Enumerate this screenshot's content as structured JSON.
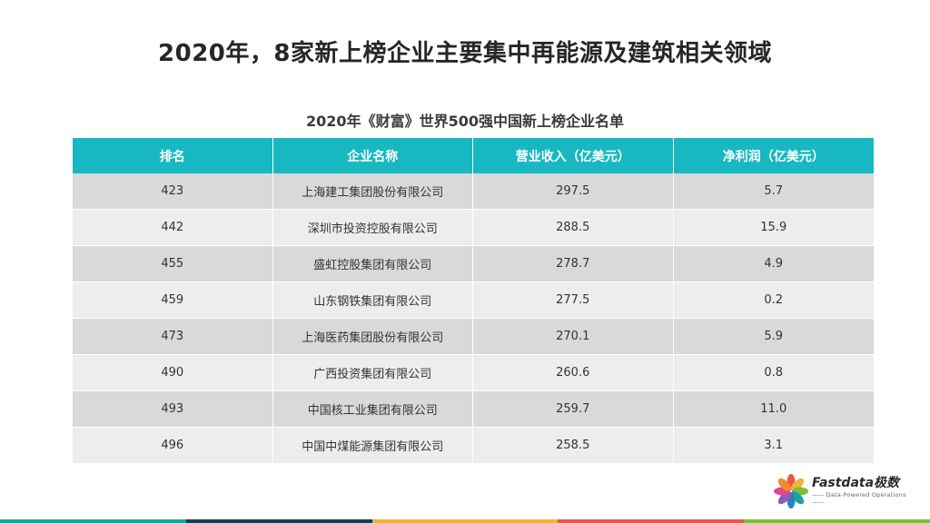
{
  "title": "2020年，8家新上榜企业主要集中再能源及建筑相关领域",
  "table_title": "2020年《财富》世界500强中国新上榜企业名单",
  "columns": [
    "排名",
    "企业名称",
    "营业收入（亿美元）",
    "净利润（亿美元）"
  ],
  "rows": [
    [
      "423",
      "上海建工集团股份有限公司",
      "297.5",
      "5.7"
    ],
    [
      "442",
      "深圳市投资控股有限公司",
      "288.5",
      "15.9"
    ],
    [
      "455",
      "盛虹控股集团有限公司",
      "278.7",
      "4.9"
    ],
    [
      "459",
      "山东钢铁集团有限公司",
      "277.5",
      "0.2"
    ],
    [
      "473",
      "上海医药集团股份有限公司",
      "270.1",
      "5.9"
    ],
    [
      "490",
      "广西投资集团有限公司",
      "260.6",
      "0.8"
    ],
    [
      "493",
      "中国核工业集团有限公司",
      "259.7",
      "11.0"
    ],
    [
      "496",
      "中国中煤能源集团有限公司",
      "258.5",
      "3.1"
    ]
  ],
  "logo": {
    "brand": "Fastdata极数",
    "tagline": "Data-Powered Operations",
    "icon": "pinwheel-logo-icon"
  },
  "colors": {
    "header": "#18b8c2",
    "row_odd": "#d9d9d9",
    "row_even": "#ededed",
    "bottom_bar": [
      "#1aa39a",
      "#1f3b57",
      "#f2b33d",
      "#e8564a",
      "#7bbf3f"
    ]
  }
}
